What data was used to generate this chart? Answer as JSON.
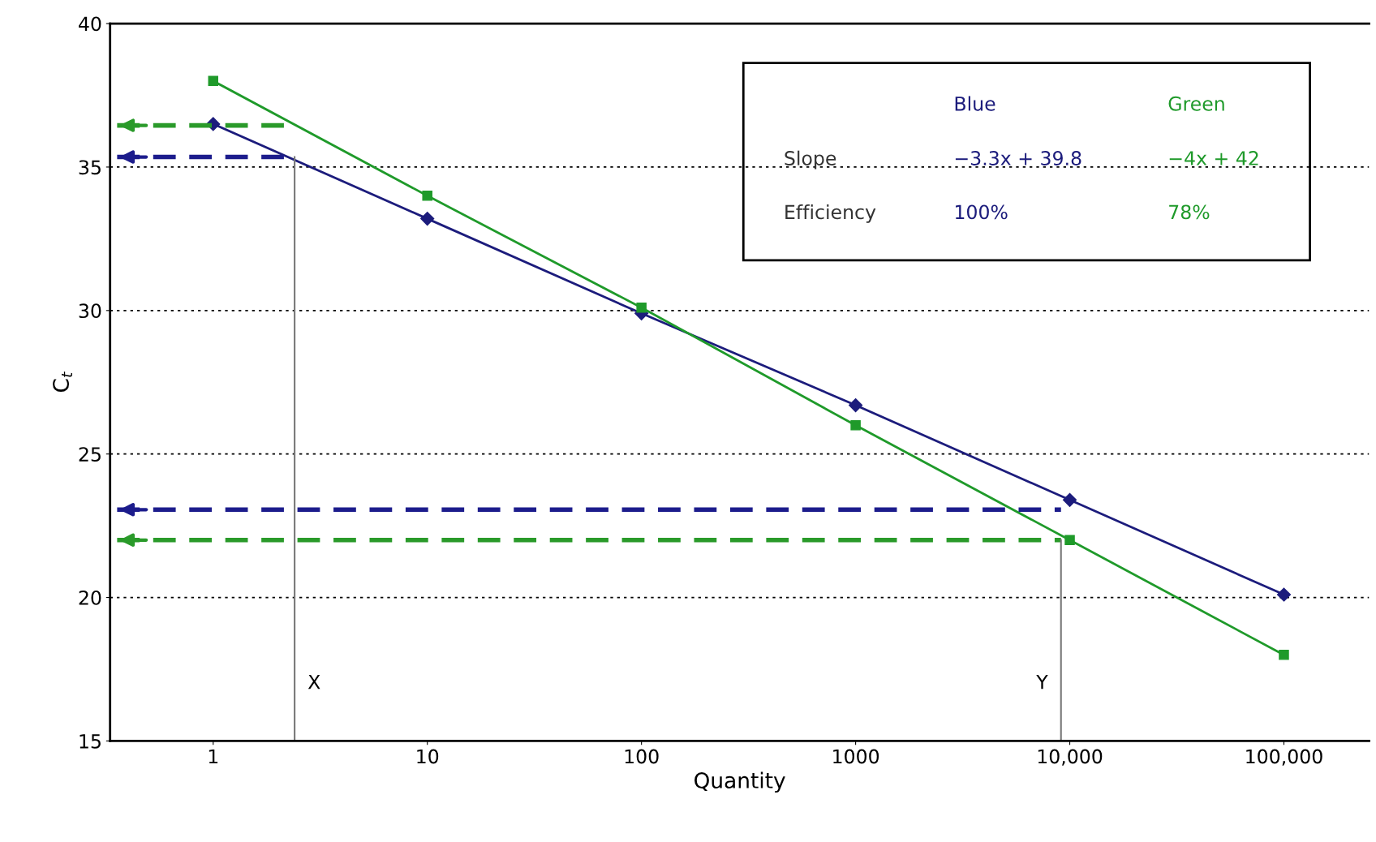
{
  "chart_data": {
    "type": "line",
    "xlabel": "Quantity",
    "ylabel": "C$_{t}$",
    "log": "x",
    "xlim": [
      0.33,
      250000
    ],
    "ylim": [
      15,
      40
    ],
    "xticks": [
      1,
      10,
      100,
      1000,
      {
        "value": 10000,
        "label": "10,000"
      },
      {
        "value": 100000,
        "label": "100,000"
      }
    ],
    "yticks": [
      15,
      20,
      25,
      30,
      35,
      40
    ],
    "grid": "y",
    "series": [
      {
        "color": "#1c1c7c",
        "marker": "diamond",
        "x": [
          1,
          10,
          100,
          1000,
          10000,
          100000
        ],
        "values": [
          36.5,
          33.2,
          29.9,
          26.7,
          23.4,
          20.1
        ]
      },
      {
        "color": "#1f9a2a",
        "marker": "square",
        "x": [
          1,
          10,
          100,
          1000,
          10000,
          100000
        ],
        "values": [
          38.0,
          34.0,
          30.1,
          26.0,
          22.0,
          18.0
        ]
      },
      {
        "color": "#1c1c8c",
        "line_style": "dashed",
        "marker": "none",
        "x": [
          0.356,
          2.4
        ],
        "values": [
          35.35,
          35.35
        ]
      },
      {
        "color": "#2a9a2a",
        "line_style": "dashed",
        "marker": "none",
        "x": [
          0.356,
          2.4
        ],
        "values": [
          36.45,
          36.45
        ]
      },
      {
        "color": "#1c1c8c",
        "line_style": "dashed",
        "marker": "none",
        "x": [
          0.356,
          9100
        ],
        "values": [
          23.06,
          23.06
        ]
      },
      {
        "color": "#2a9a2a",
        "line_style": "dashed",
        "marker": "none",
        "x": [
          0.356,
          9100
        ],
        "values": [
          22.0,
          22.0
        ]
      },
      {
        "color": "#777777",
        "marker": "none",
        "x": [
          2.4,
          2.4
        ],
        "values": [
          15,
          35.35
        ]
      },
      {
        "color": "#777777",
        "marker": "none",
        "x": [
          9100,
          9100
        ],
        "values": [
          15,
          22.0
        ]
      }
    ],
    "annotations": [
      "Blue",
      "Green",
      "Slope",
      "−3.3x + 39.8",
      "−4x + 42",
      "Efficiency",
      "100%",
      "78%",
      {
        "text": "X",
        "x": 2.4,
        "y": 17
      },
      {
        "text": "Y",
        "x": 9100,
        "y": 17
      }
    ]
  }
}
